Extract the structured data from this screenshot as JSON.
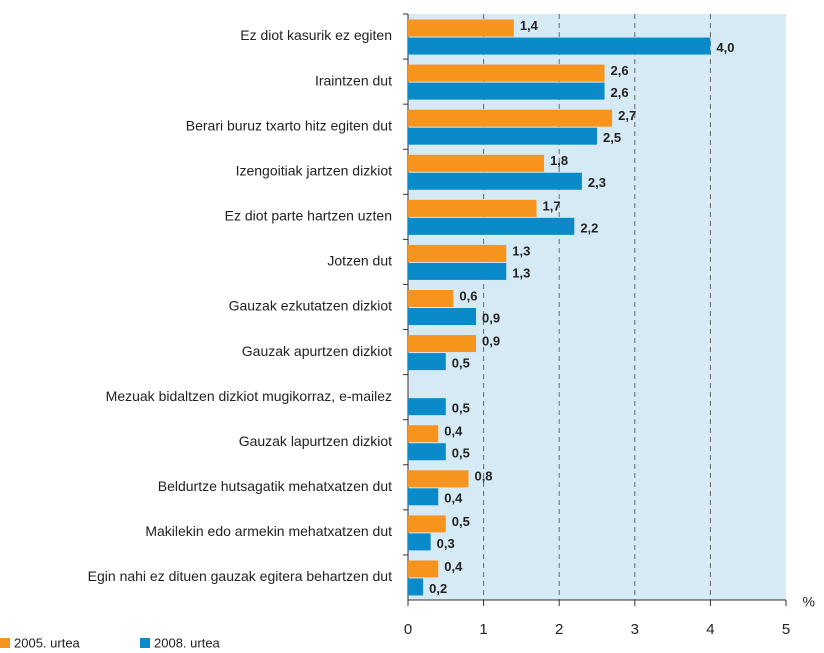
{
  "chart_data": {
    "type": "hbar",
    "categories": [
      "Ez diot kasurik ez egiten",
      "Iraintzen dut",
      "Berari buruz txarto hitz egiten dut",
      "Izengoitiak jartzen dizkiot",
      "Ez diot parte hartzen uzten",
      "Jotzen dut",
      "Gauzak ezkutatzen dizkiot",
      "Gauzak apurtzen dizkiot",
      "Mezuak bidaltzen dizkiot mugikorraz, e-mailez",
      "Gauzak lapurtzen dizkiot",
      "Beldurtze hutsagatik mehatxatzen dut",
      "Makilekin edo armekin mehatxatzen dut",
      "Egin nahi ez dituen gauzak egitera behartzen dut"
    ],
    "series": [
      {
        "name": "2005. urtea",
        "color": "#f7941d",
        "values": [
          1.4,
          2.6,
          2.7,
          1.8,
          1.7,
          1.3,
          0.6,
          0.9,
          null,
          0.4,
          0.8,
          0.5,
          0.4
        ],
        "value_labels": [
          "1,4",
          "2,6",
          "2,7",
          "1,8",
          "1,7",
          "1,3",
          "0,6",
          "0,9",
          null,
          "0,4",
          "0,8",
          "0,5",
          "0,4"
        ]
      },
      {
        "name": "2008. urtea",
        "color": "#0a8ac9",
        "values": [
          4.0,
          2.6,
          2.5,
          2.3,
          2.2,
          1.3,
          0.9,
          0.5,
          0.5,
          0.5,
          0.4,
          0.3,
          0.2
        ],
        "value_labels": [
          "4,0",
          "2,6",
          "2,5",
          "2,3",
          "2,2",
          "1,3",
          "0,9",
          "0,5",
          "0,5",
          "0,5",
          "0,4",
          "0,3",
          "0,2"
        ]
      }
    ],
    "xlabel": "%",
    "xlim": [
      0,
      5
    ],
    "xticks": [
      0,
      1,
      2,
      3,
      4,
      5
    ],
    "grid": true,
    "legend": "bottom-left"
  }
}
